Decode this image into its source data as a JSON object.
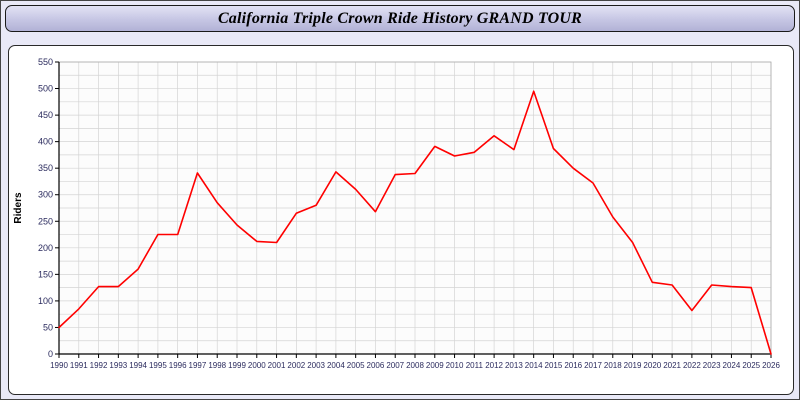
{
  "title": "California Triple Crown Ride History GRAND TOUR",
  "colors": {
    "line": "#ff0000",
    "grid": "#d4d4d4",
    "axis": "#000000",
    "tick_label": "#2b2b5e",
    "plot_bg": "#fcfcfc"
  },
  "chart_data": {
    "type": "line",
    "title": "California Triple Crown Ride History GRAND TOUR",
    "xlabel": "",
    "ylabel": "Riders",
    "ylim": [
      0,
      550
    ],
    "y_tick_step": 50,
    "y_grid_step": 25,
    "grid": true,
    "legend_position": "none",
    "x": [
      1990,
      1991,
      1992,
      1993,
      1994,
      1995,
      1996,
      1997,
      1998,
      1999,
      2000,
      2001,
      2002,
      2003,
      2004,
      2005,
      2006,
      2007,
      2008,
      2009,
      2010,
      2011,
      2012,
      2013,
      2014,
      2015,
      2016,
      2017,
      2018,
      2019,
      2020,
      2021,
      2022,
      2023,
      2024,
      2025,
      2026
    ],
    "series": [
      {
        "name": "Riders",
        "values": [
          50,
          85,
          127,
          127,
          160,
          225,
          225,
          341,
          285,
          243,
          212,
          210,
          265,
          280,
          343,
          310,
          268,
          338,
          340,
          391,
          373,
          380,
          411,
          385,
          495,
          387,
          350,
          322,
          258,
          210,
          135,
          130,
          82,
          130,
          127,
          125,
          0
        ]
      }
    ]
  }
}
